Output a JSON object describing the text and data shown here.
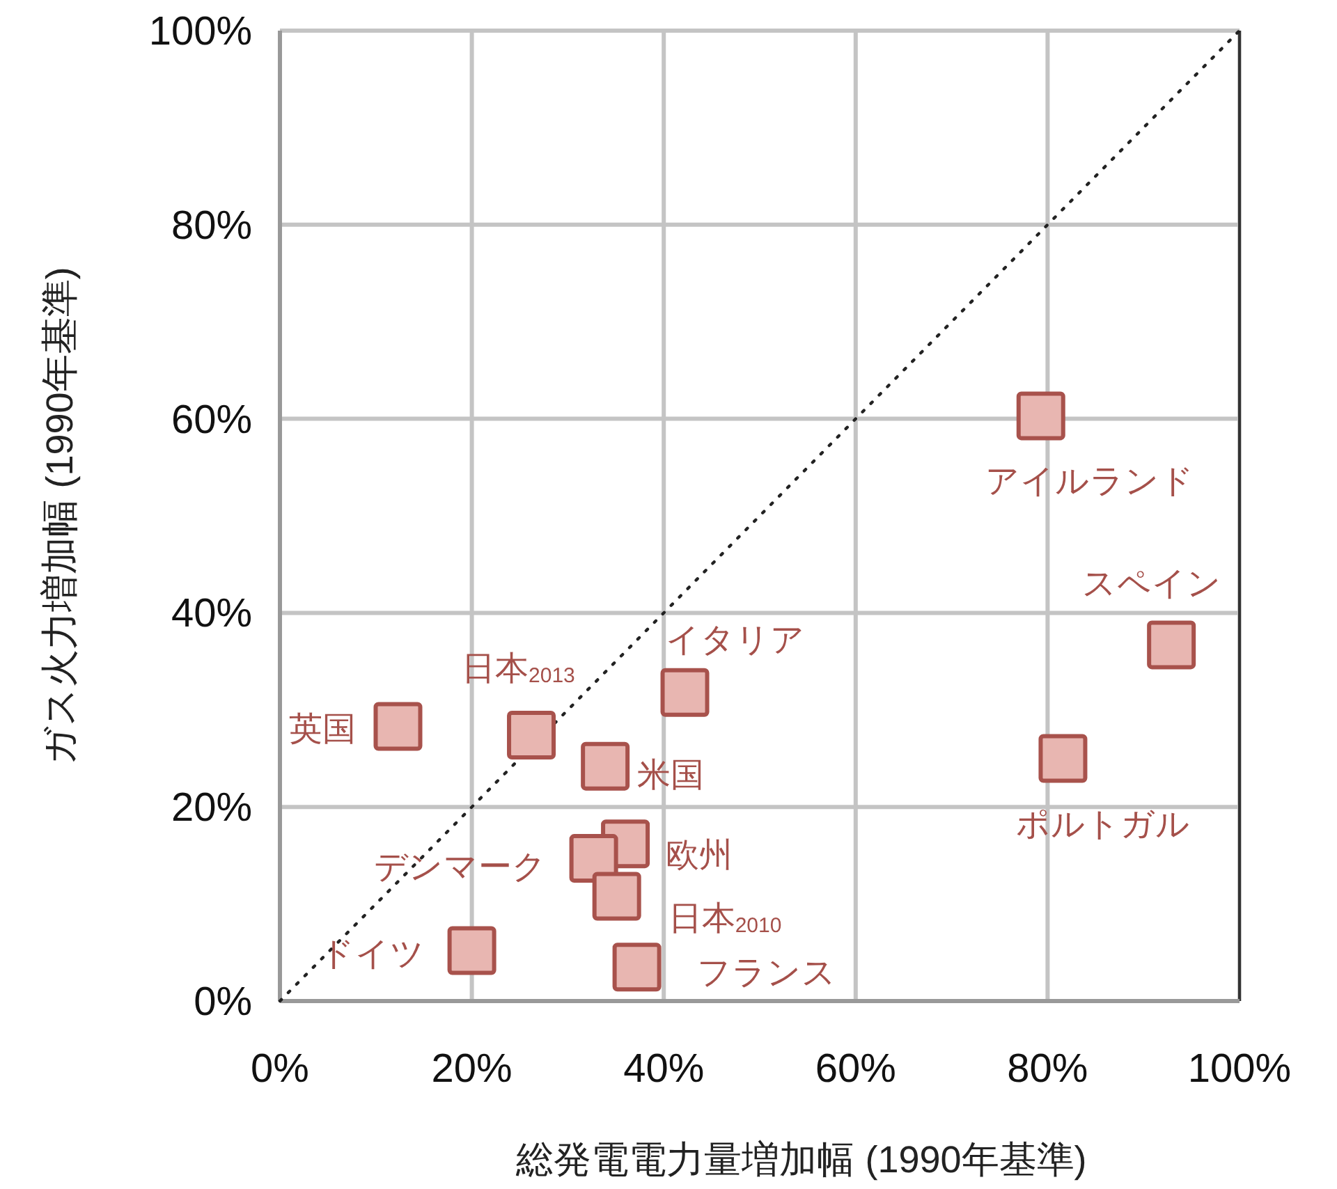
{
  "chart_data": {
    "type": "scatter",
    "xlabel": "総発電電力量増加幅 (1990年基準)",
    "ylabel": "ガス火力増加幅 (1990年基準)",
    "xlim": [
      0,
      100
    ],
    "ylim": [
      0,
      100
    ],
    "xticks": [
      {
        "value": 0,
        "label": "0%"
      },
      {
        "value": 20,
        "label": "20%"
      },
      {
        "value": 40,
        "label": "40%"
      },
      {
        "value": 60,
        "label": "60%"
      },
      {
        "value": 80,
        "label": "80%"
      },
      {
        "value": 100,
        "label": "100%"
      }
    ],
    "yticks": [
      {
        "value": 0,
        "label": "0%"
      },
      {
        "value": 20,
        "label": "20%"
      },
      {
        "value": 40,
        "label": "40%"
      },
      {
        "value": 60,
        "label": "60%"
      },
      {
        "value": 80,
        "label": "80%"
      },
      {
        "value": 100,
        "label": "100%"
      }
    ],
    "grid": true,
    "series": [
      {
        "color": "#e8b6b1",
        "marker": "square",
        "x": [
          12.3,
          26.2,
          42.2,
          33.9,
          36.0,
          32.7,
          35.1,
          20.0,
          37.2,
          79.3,
          92.9,
          81.6
        ],
        "values": [
          28.3,
          27.4,
          31.8,
          24.2,
          16.2,
          14.7,
          10.8,
          5.2,
          3.5,
          60.3,
          36.7,
          25.0
        ]
      },
      {
        "type": "line",
        "color": "#222222",
        "line_style": "dotted",
        "x": [
          0,
          100
        ],
        "values": [
          0,
          100
        ]
      }
    ],
    "annotations": [
      {
        "text": "英国",
        "x": 12.3,
        "y": 28.3
      },
      {
        "text": "日本$_{2013}$",
        "x": 26.2,
        "y": 27.4
      },
      {
        "text": "イタリア",
        "x": 42.2,
        "y": 31.8
      },
      {
        "text": "米国",
        "x": 33.9,
        "y": 24.2
      },
      {
        "text": "欧州",
        "x": 36.0,
        "y": 16.2
      },
      {
        "text": "デンマーク",
        "x": 32.7,
        "y": 14.7
      },
      {
        "text": "日本$_{2010}$",
        "x": 35.1,
        "y": 10.8
      },
      {
        "text": "ドイツ",
        "x": 20.0,
        "y": 5.2
      },
      {
        "text": "フランス",
        "x": 37.2,
        "y": 3.5
      },
      {
        "text": "アイルランド",
        "x": 79.3,
        "y": 60.3
      },
      {
        "text": "スペイン",
        "x": 92.9,
        "y": 36.7
      },
      {
        "text": "ポルトガル",
        "x": 81.6,
        "y": 25.0
      }
    ]
  }
}
